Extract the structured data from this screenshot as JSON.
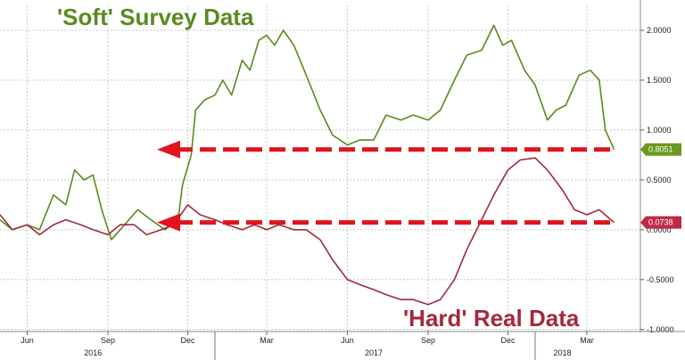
{
  "chart_data": {
    "type": "line",
    "annotations": {
      "soft_title": "'Soft' Survey Data",
      "hard_title": "'Hard' Real Data"
    },
    "colors": {
      "soft": "#5a8a1e",
      "hard": "#a3283f",
      "arrow": "#e0141e",
      "soft_badge": "#6a9a1f",
      "hard_badge": "#c02a48"
    },
    "y_axis": {
      "ylim": [
        -1.02,
        2.25
      ],
      "ticks": [
        {
          "v": 2.0,
          "label": "2.0000"
        },
        {
          "v": 1.5,
          "label": "1.5000"
        },
        {
          "v": 1.0,
          "label": "1.0000"
        },
        {
          "v": 0.5,
          "label": "0.5000"
        },
        {
          "v": 0.0,
          "label": "0.0000"
        },
        {
          "v": -0.5,
          "label": "-0.5000"
        },
        {
          "v": -1.0,
          "label": "-1.0000"
        }
      ],
      "grid": true,
      "position": "right"
    },
    "x_axis": {
      "xlim": [
        "2016-05-01",
        "2018-05-01"
      ],
      "month_ticks": [
        {
          "date": "2016-06-01",
          "label": "Jun"
        },
        {
          "date": "2016-09-01",
          "label": "Sep"
        },
        {
          "date": "2016-12-01",
          "label": "Dec"
        },
        {
          "date": "2017-03-01",
          "label": "Mar"
        },
        {
          "date": "2017-06-01",
          "label": "Jun"
        },
        {
          "date": "2017-09-01",
          "label": "Sep"
        },
        {
          "date": "2017-12-01",
          "label": "Dec"
        },
        {
          "date": "2018-03-01",
          "label": "Mar"
        }
      ],
      "year_labels": [
        {
          "date": "2016-08-15",
          "label": "2016"
        },
        {
          "date": "2017-07-01",
          "label": "2017"
        },
        {
          "date": "2018-02-01",
          "label": "2018"
        }
      ],
      "year_boundaries": [
        "2017-01-01",
        "2018-01-01"
      ]
    },
    "series": [
      {
        "key": "soft",
        "last_label": "0.8051",
        "points": [
          [
            "2016-05-01",
            0.1
          ],
          [
            "2016-05-15",
            0.0
          ],
          [
            "2016-06-01",
            0.05
          ],
          [
            "2016-06-15",
            0.0
          ],
          [
            "2016-07-01",
            0.35
          ],
          [
            "2016-07-15",
            0.25
          ],
          [
            "2016-07-25",
            0.6
          ],
          [
            "2016-08-05",
            0.5
          ],
          [
            "2016-08-15",
            0.55
          ],
          [
            "2016-08-25",
            0.2
          ],
          [
            "2016-09-05",
            -0.1
          ],
          [
            "2016-09-20",
            0.05
          ],
          [
            "2016-10-05",
            0.2
          ],
          [
            "2016-10-20",
            0.1
          ],
          [
            "2016-11-05",
            0.0
          ],
          [
            "2016-11-20",
            0.1
          ],
          [
            "2016-11-25",
            0.45
          ],
          [
            "2016-12-05",
            0.75
          ],
          [
            "2016-12-10",
            1.2
          ],
          [
            "2016-12-20",
            1.3
          ],
          [
            "2017-01-01",
            1.35
          ],
          [
            "2017-01-10",
            1.5
          ],
          [
            "2017-01-20",
            1.35
          ],
          [
            "2017-02-01",
            1.7
          ],
          [
            "2017-02-10",
            1.6
          ],
          [
            "2017-02-20",
            1.9
          ],
          [
            "2017-03-01",
            1.95
          ],
          [
            "2017-03-10",
            1.85
          ],
          [
            "2017-03-20",
            2.0
          ],
          [
            "2017-04-01",
            1.85
          ],
          [
            "2017-04-15",
            1.55
          ],
          [
            "2017-05-01",
            1.2
          ],
          [
            "2017-05-15",
            0.95
          ],
          [
            "2017-06-01",
            0.85
          ],
          [
            "2017-06-15",
            0.9
          ],
          [
            "2017-07-01",
            0.9
          ],
          [
            "2017-07-15",
            1.15
          ],
          [
            "2017-08-01",
            1.1
          ],
          [
            "2017-08-15",
            1.15
          ],
          [
            "2017-09-01",
            1.1
          ],
          [
            "2017-09-15",
            1.2
          ],
          [
            "2017-10-01",
            1.5
          ],
          [
            "2017-10-15",
            1.75
          ],
          [
            "2017-11-01",
            1.8
          ],
          [
            "2017-11-15",
            2.05
          ],
          [
            "2017-11-25",
            1.85
          ],
          [
            "2017-12-05",
            1.9
          ],
          [
            "2017-12-20",
            1.6
          ],
          [
            "2018-01-01",
            1.45
          ],
          [
            "2018-01-15",
            1.1
          ],
          [
            "2018-01-25",
            1.2
          ],
          [
            "2018-02-05",
            1.25
          ],
          [
            "2018-02-20",
            1.55
          ],
          [
            "2018-03-05",
            1.6
          ],
          [
            "2018-03-15",
            1.5
          ],
          [
            "2018-03-22",
            1.0
          ],
          [
            "2018-04-01",
            0.8051
          ]
        ]
      },
      {
        "key": "hard",
        "last_label": "0.0738",
        "points": [
          [
            "2016-05-01",
            0.15
          ],
          [
            "2016-05-15",
            0.0
          ],
          [
            "2016-06-01",
            0.05
          ],
          [
            "2016-06-15",
            -0.05
          ],
          [
            "2016-07-01",
            0.05
          ],
          [
            "2016-07-15",
            0.1
          ],
          [
            "2016-08-01",
            0.05
          ],
          [
            "2016-08-15",
            0.0
          ],
          [
            "2016-09-01",
            -0.05
          ],
          [
            "2016-09-15",
            0.05
          ],
          [
            "2016-10-01",
            0.05
          ],
          [
            "2016-10-15",
            -0.05
          ],
          [
            "2016-11-01",
            0.0
          ],
          [
            "2016-11-15",
            0.05
          ],
          [
            "2016-12-01",
            0.25
          ],
          [
            "2016-12-15",
            0.15
          ],
          [
            "2017-01-01",
            0.1
          ],
          [
            "2017-01-15",
            0.05
          ],
          [
            "2017-02-01",
            0.0
          ],
          [
            "2017-02-15",
            0.05
          ],
          [
            "2017-03-01",
            0.0
          ],
          [
            "2017-03-15",
            0.05
          ],
          [
            "2017-04-01",
            0.0
          ],
          [
            "2017-04-15",
            0.0
          ],
          [
            "2017-05-01",
            -0.1
          ],
          [
            "2017-05-15",
            -0.3
          ],
          [
            "2017-06-01",
            -0.5
          ],
          [
            "2017-06-15",
            -0.55
          ],
          [
            "2017-07-01",
            -0.6
          ],
          [
            "2017-07-15",
            -0.65
          ],
          [
            "2017-08-01",
            -0.7
          ],
          [
            "2017-08-15",
            -0.7
          ],
          [
            "2017-09-01",
            -0.75
          ],
          [
            "2017-09-15",
            -0.7
          ],
          [
            "2017-10-01",
            -0.5
          ],
          [
            "2017-10-15",
            -0.2
          ],
          [
            "2017-11-01",
            0.1
          ],
          [
            "2017-11-15",
            0.35
          ],
          [
            "2017-12-01",
            0.6
          ],
          [
            "2017-12-15",
            0.7
          ],
          [
            "2018-01-01",
            0.72
          ],
          [
            "2018-01-15",
            0.6
          ],
          [
            "2018-02-01",
            0.4
          ],
          [
            "2018-02-15",
            0.2
          ],
          [
            "2018-03-01",
            0.15
          ],
          [
            "2018-03-15",
            0.2
          ],
          [
            "2018-04-01",
            0.0738
          ]
        ]
      }
    ]
  }
}
